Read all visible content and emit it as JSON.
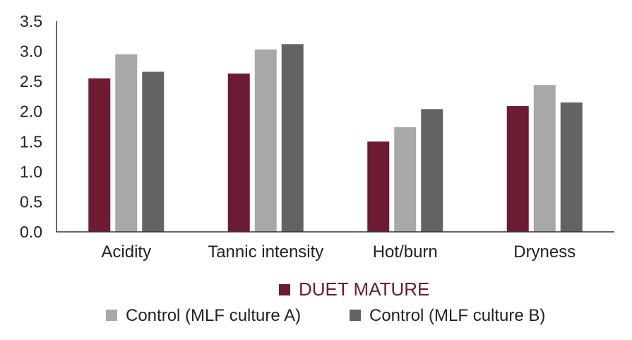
{
  "chart_data": {
    "type": "bar",
    "title": "",
    "xlabel": "",
    "ylabel": "",
    "ylim": [
      0,
      3.5
    ],
    "yticks": [
      "0.0",
      "0.5",
      "1.0",
      "1.5",
      "2.0",
      "2.5",
      "3.0",
      "3.5"
    ],
    "grid": false,
    "legend_position": "bottom",
    "categories": [
      "Acidity",
      "Tannic intensity",
      "Hot/burn",
      "Dryness"
    ],
    "series": [
      {
        "name": "DUET MATURE",
        "color": "#6d1b33",
        "values": [
          2.55,
          2.63,
          1.5,
          2.09
        ]
      },
      {
        "name": "Control (MLF culture A)",
        "color": "#a8a8a8",
        "values": [
          2.95,
          3.03,
          1.74,
          2.44
        ]
      },
      {
        "name": "Control (MLF culture B)",
        "color": "#636363",
        "values": [
          2.66,
          3.12,
          2.04,
          2.15
        ]
      }
    ]
  }
}
